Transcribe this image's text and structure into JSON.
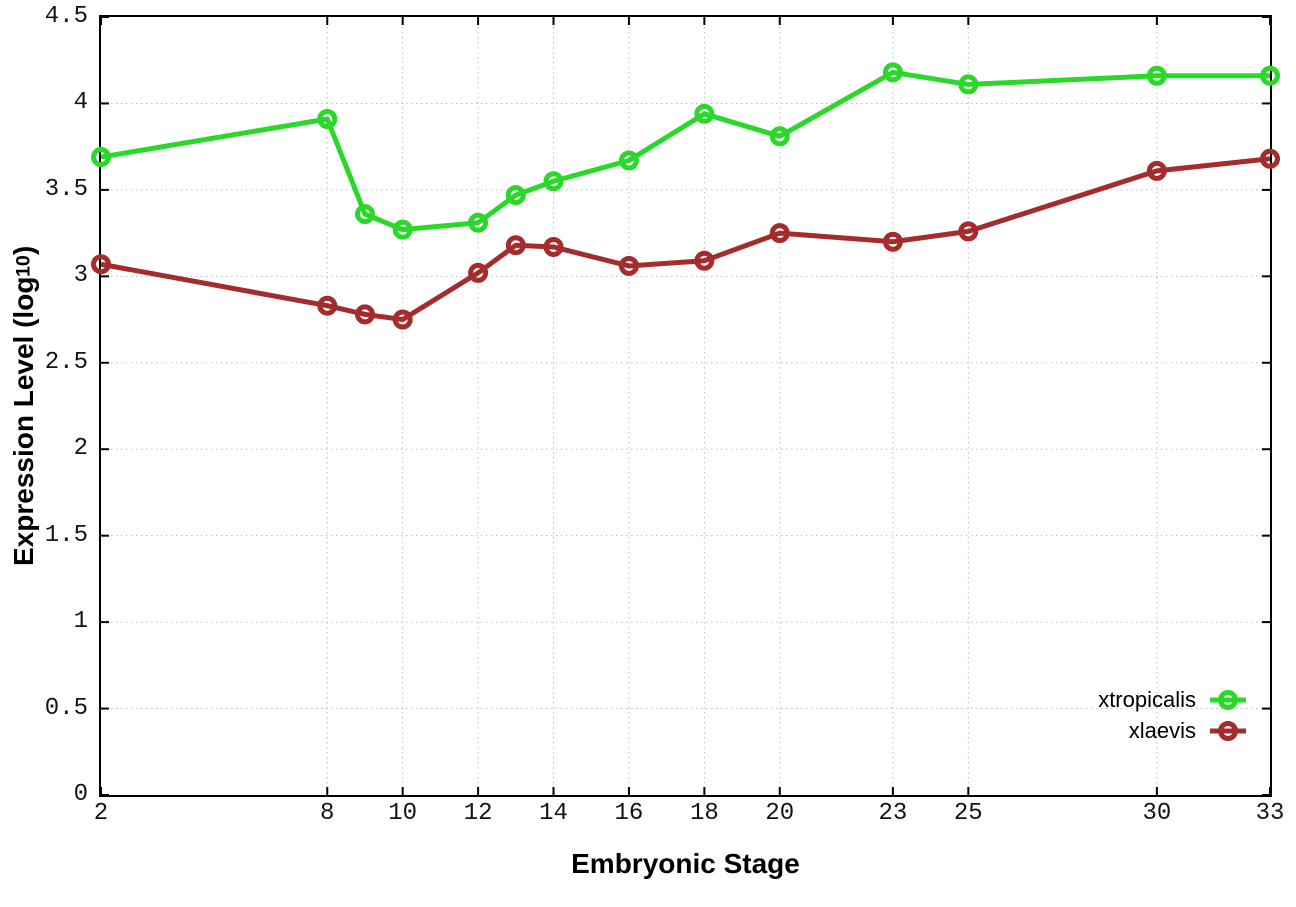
{
  "chart_data": {
    "type": "line",
    "title": "",
    "xlabel": "Embryonic Stage",
    "ylabel": "Expression Level (log10)",
    "ylabel_parts": {
      "prefix": "Expression Level (log",
      "sub": "10",
      "suffix": ")"
    },
    "x": [
      2,
      8,
      9,
      10,
      12,
      13,
      14,
      16,
      18,
      20,
      23,
      25,
      30,
      33
    ],
    "series": [
      {
        "name": "xtropicalis",
        "color": "#29d829",
        "values": [
          3.69,
          3.91,
          3.36,
          3.27,
          3.31,
          3.47,
          3.55,
          3.67,
          3.94,
          3.81,
          4.18,
          4.11,
          4.16,
          4.16
        ]
      },
      {
        "name": "xlaevis",
        "color": "#a42c2c",
        "values": [
          3.07,
          2.83,
          2.78,
          2.75,
          3.02,
          3.18,
          3.17,
          3.06,
          3.09,
          3.25,
          3.2,
          3.26,
          3.61,
          3.68
        ]
      }
    ],
    "xlim": [
      2,
      33
    ],
    "ylim": [
      0,
      4.5
    ],
    "xticks": [
      2,
      8,
      10,
      12,
      14,
      16,
      18,
      20,
      23,
      25,
      30,
      33
    ],
    "xtick_labels": [
      "2",
      "8",
      "10",
      "12",
      "14",
      "16",
      "18",
      "20",
      "23",
      "25",
      "30",
      "33"
    ],
    "yticks": [
      0,
      0.5,
      1,
      1.5,
      2,
      2.5,
      3,
      3.5,
      4,
      4.5
    ],
    "ytick_labels": [
      "0",
      "0.5",
      "1",
      "1.5",
      "2",
      "2.5",
      "3",
      "3.5",
      "4",
      "4.5"
    ],
    "grid": true,
    "grid_color": "#bdbdbd",
    "axis_color": "#000000",
    "legend_position": "bottom-right"
  }
}
